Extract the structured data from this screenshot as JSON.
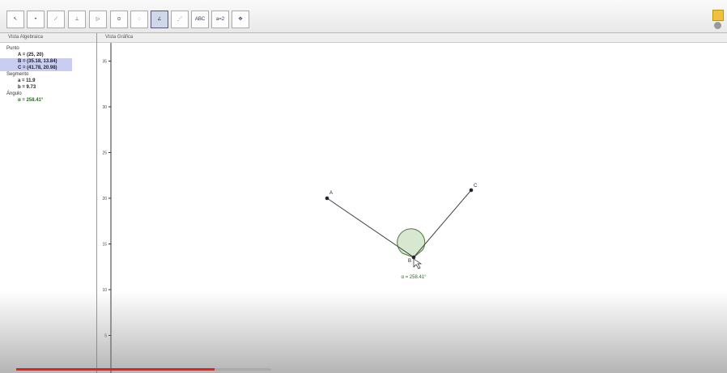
{
  "toolbar": {
    "text_tool": "ABC",
    "slider_tool": "a=2"
  },
  "algebra_view": {
    "title": "Vista Algebraica",
    "groups": [
      {
        "name": "Punto",
        "items": [
          "A = (25, 20)",
          "B = (35.18, 13.84)",
          "C = (41.78, 20.98)"
        ]
      },
      {
        "name": "Segmento",
        "items": [
          "a = 11.9",
          "b = 9.73"
        ]
      },
      {
        "name": "Ángulo",
        "items": [
          "α = 258.41°"
        ]
      }
    ]
  },
  "graphics_view": {
    "title": "Vista Gráfica",
    "yticks": [
      35,
      30,
      25,
      20,
      15,
      10,
      5
    ],
    "points": [
      "A",
      "B",
      "C"
    ],
    "angle_label": "α = 258.41°"
  }
}
